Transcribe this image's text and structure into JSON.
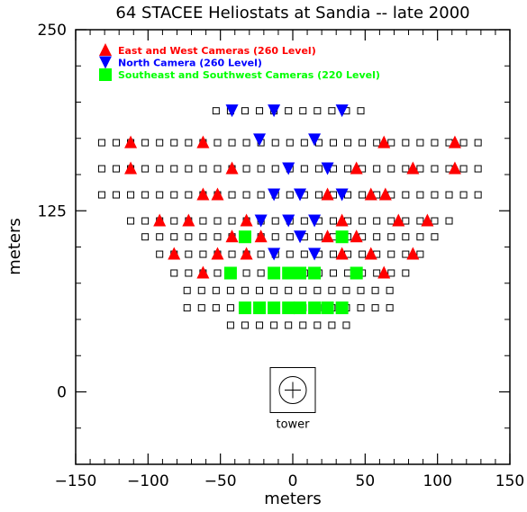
{
  "chart_data": {
    "type": "scatter",
    "title": "64 STACEE Heliostats at Sandia -- late 2000",
    "xlabel": "meters",
    "ylabel": "meters",
    "xlim": [
      -150,
      150
    ],
    "ylim": [
      -50,
      250
    ],
    "x_ticks": [
      -150,
      -100,
      -50,
      0,
      50,
      100,
      150
    ],
    "x_tick_labels": [
      "−150",
      "−100",
      "−50",
      "0",
      "50",
      "100",
      "150"
    ],
    "y_ticks": [
      0,
      125,
      250
    ],
    "y_tick_labels": [
      "0",
      "125",
      "250"
    ],
    "grid": false,
    "legend_position": "top-left",
    "tower": {
      "label": "tower",
      "x": 0,
      "y": 0
    },
    "series": [
      {
        "name": "East and West Cameras (260 Level)",
        "marker": "triangle-up",
        "color": "#ff0000",
        "points": [
          [
            -112,
            172
          ],
          [
            -62,
            172
          ],
          [
            63,
            172
          ],
          [
            112,
            172
          ],
          [
            -112,
            154
          ],
          [
            -42,
            154
          ],
          [
            44,
            154
          ],
          [
            83,
            154
          ],
          [
            112,
            154
          ],
          [
            -62,
            136
          ],
          [
            -52,
            136
          ],
          [
            24,
            136
          ],
          [
            54,
            136
          ],
          [
            64,
            136
          ],
          [
            -92,
            118
          ],
          [
            -72,
            118
          ],
          [
            -32,
            118
          ],
          [
            34,
            118
          ],
          [
            73,
            118
          ],
          [
            93,
            118
          ],
          [
            -42,
            107
          ],
          [
            -22,
            107
          ],
          [
            24,
            107
          ],
          [
            44,
            107
          ],
          [
            -82,
            95
          ],
          [
            -52,
            95
          ],
          [
            -32,
            95
          ],
          [
            34,
            95
          ],
          [
            54,
            95
          ],
          [
            83,
            95
          ],
          [
            -62,
            82
          ],
          [
            63,
            82
          ]
        ]
      },
      {
        "name": "North Camera (260 Level)",
        "marker": "triangle-down",
        "color": "#0000ff",
        "points": [
          [
            -42,
            194
          ],
          [
            -13,
            194
          ],
          [
            34,
            194
          ],
          [
            -23,
            174
          ],
          [
            15,
            174
          ],
          [
            -3,
            154
          ],
          [
            24,
            154
          ],
          [
            -13,
            136
          ],
          [
            5,
            136
          ],
          [
            34,
            136
          ],
          [
            -22,
            118
          ],
          [
            -3,
            118
          ],
          [
            15,
            118
          ],
          [
            5,
            107
          ],
          [
            -13,
            95
          ],
          [
            15,
            95
          ]
        ]
      },
      {
        "name": "Southeast and Southwest Cameras (220 Level)",
        "marker": "square-filled",
        "color": "#00ff00",
        "points": [
          [
            -33,
            107
          ],
          [
            34,
            107
          ],
          [
            -43,
            82
          ],
          [
            -13,
            82
          ],
          [
            -3,
            82
          ],
          [
            5,
            82
          ],
          [
            15,
            82
          ],
          [
            44,
            82
          ],
          [
            -33,
            58
          ],
          [
            -23,
            58
          ],
          [
            -13,
            58
          ],
          [
            -3,
            58
          ],
          [
            5,
            58
          ],
          [
            15,
            58
          ],
          [
            24,
            58
          ],
          [
            34,
            58
          ]
        ]
      },
      {
        "name": "",
        "marker": "square-open",
        "color": "#000000",
        "rows": [
          {
            "y": 194,
            "x_from": -53,
            "x_to": 55,
            "step": 10
          },
          {
            "y": 172,
            "x_from": -132,
            "x_to": 134,
            "step": 10
          },
          {
            "y": 154,
            "x_from": -132,
            "x_to": 134,
            "step": 10
          },
          {
            "y": 136,
            "x_from": -132,
            "x_to": 134,
            "step": 10
          },
          {
            "y": 118,
            "x_from": -112,
            "x_to": 114,
            "step": 10
          },
          {
            "y": 107,
            "x_from": -102,
            "x_to": 104,
            "step": 10
          },
          {
            "y": 95,
            "x_from": -92,
            "x_to": 94,
            "step": 10
          },
          {
            "y": 82,
            "x_from": -82,
            "x_to": 84,
            "step": 10
          },
          {
            "y": 70,
            "x_from": -73,
            "x_to": 75,
            "step": 10
          },
          {
            "y": 58,
            "x_from": -73,
            "x_to": 75,
            "step": 10
          },
          {
            "y": 46,
            "x_from": -43,
            "x_to": 45,
            "step": 10
          }
        ]
      }
    ]
  }
}
